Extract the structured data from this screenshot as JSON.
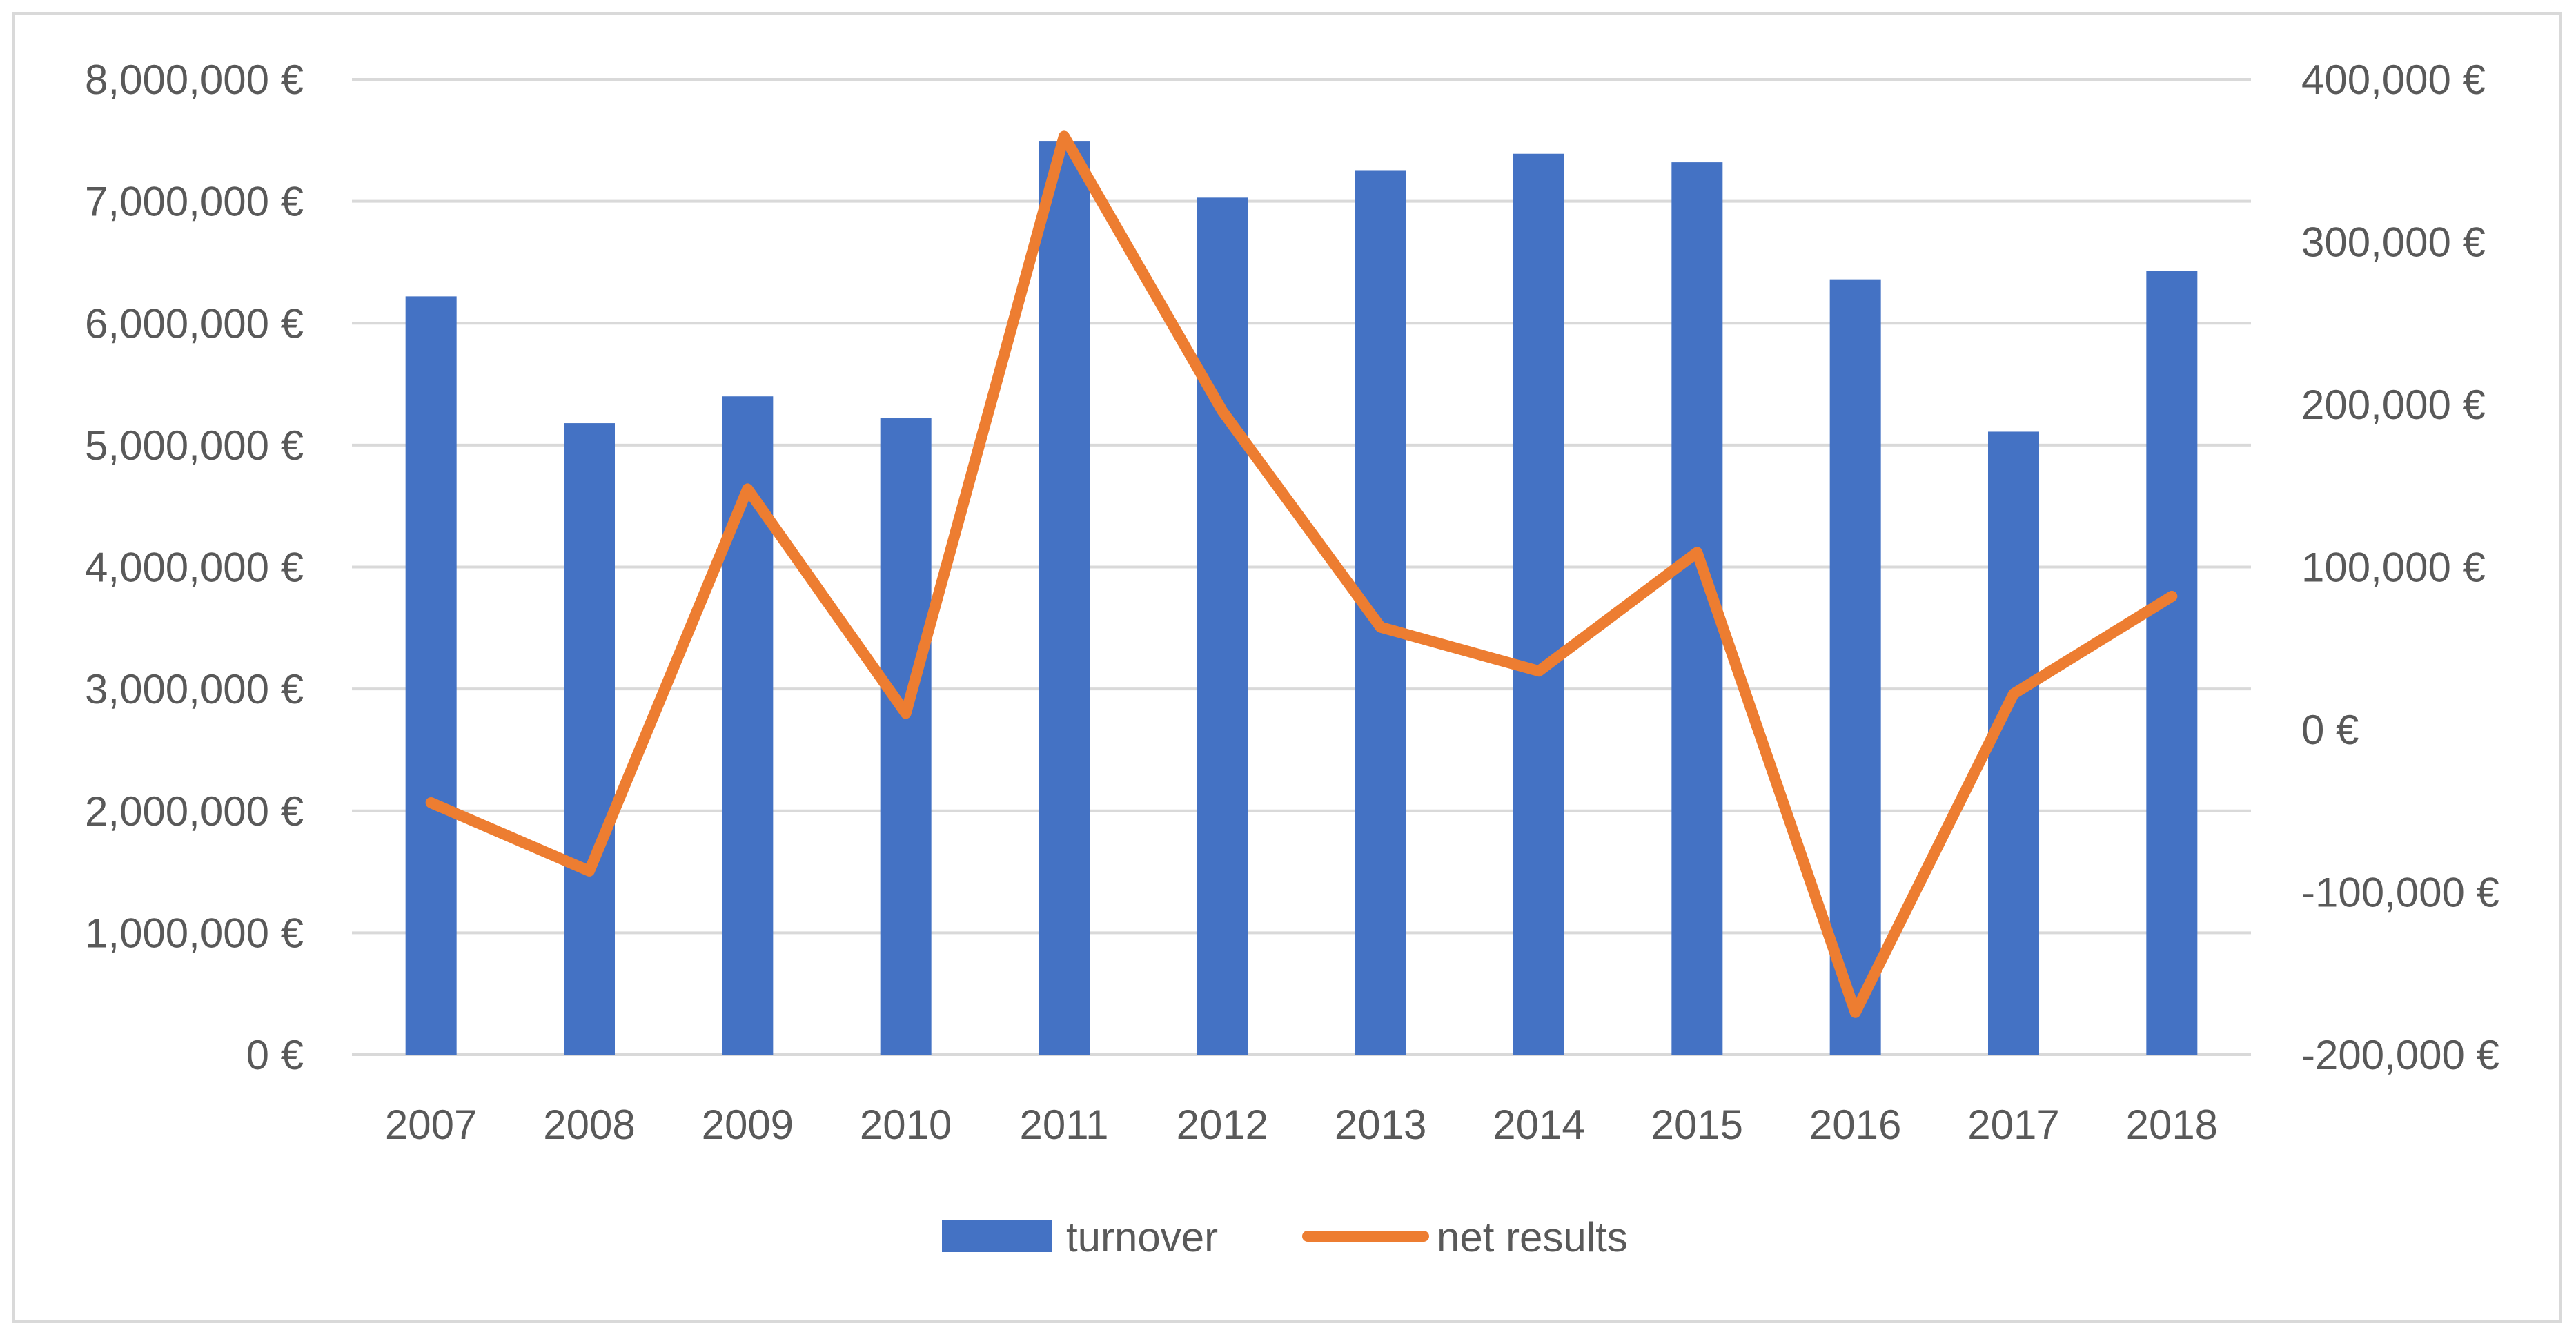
{
  "chart_data": {
    "type": "bar",
    "categories": [
      "2007",
      "2008",
      "2009",
      "2010",
      "2011",
      "2012",
      "2013",
      "2014",
      "2015",
      "2016",
      "2017",
      "2018"
    ],
    "series": [
      {
        "name": "turnover",
        "type": "bar",
        "axis": "left",
        "color": "#4472c4",
        "values": [
          6220000,
          5180000,
          5400000,
          5220000,
          7490000,
          7030000,
          7250000,
          7390000,
          7320000,
          6360000,
          5110000,
          6430000
        ]
      },
      {
        "name": "net results",
        "type": "line",
        "axis": "right",
        "color": "#ed7d31",
        "values": [
          -45000,
          -87000,
          148000,
          10000,
          365000,
          196000,
          63000,
          36000,
          109000,
          -174000,
          22000,
          82000
        ]
      }
    ],
    "y_left": {
      "range": [
        0,
        8000000
      ],
      "ticks": [
        0,
        1000000,
        2000000,
        3000000,
        4000000,
        5000000,
        6000000,
        7000000,
        8000000
      ],
      "tick_labels": [
        "0 €",
        "1,000,000 €",
        "2,000,000 €",
        "3,000,000 €",
        "4,000,000 €",
        "5,000,000 €",
        "6,000,000 €",
        "7,000,000 €",
        "8,000,000 €"
      ]
    },
    "y_right": {
      "range": [
        -200000,
        400000
      ],
      "ticks": [
        -200000,
        -100000,
        0,
        100000,
        200000,
        300000,
        400000
      ],
      "tick_labels": [
        "-200,000 €",
        "-100,000 €",
        "0 €",
        "100,000 €",
        "200,000 €",
        "300,000 €",
        "400,000 €"
      ]
    },
    "title": "",
    "xlabel": "",
    "ylabel": "",
    "grid": true,
    "legend_position": "bottom",
    "gridline_color": "#d9d9d9",
    "text_color": "#595959"
  }
}
